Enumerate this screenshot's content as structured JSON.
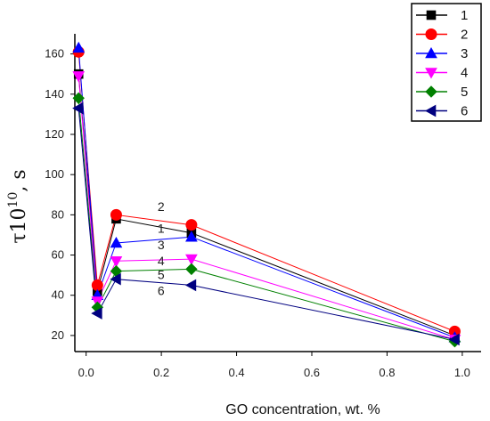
{
  "chart_data": {
    "type": "line",
    "title": "",
    "xlabel": "GO concentration, wt. %",
    "ylabel_base": "τ10",
    "ylabel_sup": "10",
    "ylabel_unit": ", s",
    "xlim": [
      -0.03,
      1.05
    ],
    "ylim": [
      12,
      170
    ],
    "xticks": [
      0.0,
      0.2,
      0.4,
      0.6,
      0.8,
      1.0
    ],
    "xtick_labels": [
      "0.0",
      "0.2",
      "0.4",
      "0.6",
      "0.8",
      "1.0"
    ],
    "yticks": [
      20,
      40,
      60,
      80,
      100,
      120,
      140,
      160
    ],
    "ytick_labels": [
      "20",
      "40",
      "60",
      "80",
      "100",
      "120",
      "140",
      "160"
    ],
    "grid": false,
    "legend_position": "top-right",
    "series": [
      {
        "name": "1",
        "color": "#000000",
        "marker": "square",
        "x": [
          -0.02,
          0.03,
          0.08,
          0.28,
          0.98
        ],
        "y": [
          150,
          42,
          78,
          71,
          20
        ]
      },
      {
        "name": "2",
        "color": "#ff0000",
        "marker": "circle",
        "x": [
          -0.02,
          0.03,
          0.08,
          0.28,
          0.98
        ],
        "y": [
          161,
          45,
          80,
          75,
          22
        ]
      },
      {
        "name": "3",
        "color": "#0000ff",
        "marker": "triangle-up",
        "x": [
          -0.02,
          0.03,
          0.08,
          0.28,
          0.98
        ],
        "y": [
          163,
          40,
          66,
          69,
          19
        ]
      },
      {
        "name": "4",
        "color": "#ff00ff",
        "marker": "triangle-down",
        "x": [
          -0.02,
          0.03,
          0.08,
          0.28,
          0.98
        ],
        "y": [
          149,
          37,
          57,
          58,
          18
        ]
      },
      {
        "name": "5",
        "color": "#008000",
        "marker": "diamond",
        "x": [
          -0.02,
          0.03,
          0.08,
          0.28,
          0.98
        ],
        "y": [
          138,
          34,
          52,
          53,
          17
        ]
      },
      {
        "name": "6",
        "color": "#000080",
        "marker": "triangle-left",
        "x": [
          -0.02,
          0.03,
          0.08,
          0.28,
          0.98
        ],
        "y": [
          133,
          31,
          48,
          45,
          18
        ]
      }
    ],
    "annotations": [
      {
        "text": "2",
        "x": 0.19,
        "y": 82
      },
      {
        "text": "1",
        "x": 0.19,
        "y": 71
      },
      {
        "text": "3",
        "x": 0.19,
        "y": 63
      },
      {
        "text": "4",
        "x": 0.19,
        "y": 55
      },
      {
        "text": "5",
        "x": 0.19,
        "y": 48
      },
      {
        "text": "6",
        "x": 0.19,
        "y": 40
      }
    ]
  }
}
